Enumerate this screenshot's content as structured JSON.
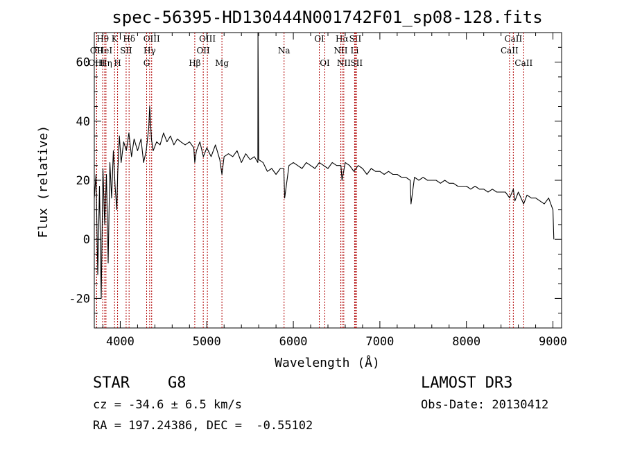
{
  "chart_data": {
    "type": "line",
    "title": "spec-56395-HD130444N001742F01_sp08-128.fits",
    "xlabel": "Wavelength (Å)",
    "ylabel": "Flux (relative)",
    "xlim": [
      3700,
      9100
    ],
    "ylim": [
      -30,
      70
    ],
    "xticks": [
      4000,
      5000,
      6000,
      7000,
      8000,
      9000
    ],
    "yticks": [
      -20,
      0,
      20,
      40,
      60
    ],
    "grid": false,
    "series": [
      {
        "name": "spectrum",
        "x": [
          3700,
          3720,
          3740,
          3760,
          3780,
          3800,
          3820,
          3840,
          3860,
          3880,
          3900,
          3920,
          3940,
          3960,
          3970,
          3990,
          4010,
          4040,
          4070,
          4100,
          4130,
          4160,
          4200,
          4240,
          4270,
          4300,
          4330,
          4340,
          4360,
          4380,
          4420,
          4460,
          4500,
          4540,
          4580,
          4620,
          4660,
          4700,
          4750,
          4800,
          4850,
          4861,
          4880,
          4920,
          4960,
          5000,
          5050,
          5100,
          5150,
          5175,
          5200,
          5250,
          5300,
          5350,
          5400,
          5450,
          5500,
          5550,
          5590,
          5592,
          5600,
          5650,
          5700,
          5750,
          5800,
          5850,
          5890,
          5900,
          5950,
          6000,
          6050,
          6100,
          6150,
          6200,
          6250,
          6300,
          6350,
          6400,
          6450,
          6500,
          6550,
          6563,
          6600,
          6650,
          6700,
          6750,
          6800,
          6850,
          6900,
          6950,
          7000,
          7050,
          7100,
          7150,
          7200,
          7250,
          7300,
          7350,
          7360,
          7400,
          7450,
          7500,
          7550,
          7600,
          7650,
          7700,
          7750,
          7800,
          7850,
          7900,
          7950,
          8000,
          8050,
          8100,
          8150,
          8200,
          8250,
          8300,
          8350,
          8400,
          8450,
          8500,
          8542,
          8560,
          8600,
          8662,
          8700,
          8750,
          8800,
          8850,
          8900,
          8950,
          9000,
          9010
        ],
        "values": [
          14,
          22,
          -12,
          18,
          -20,
          24,
          5,
          22,
          -8,
          26,
          14,
          30,
          18,
          10,
          22,
          35,
          26,
          33,
          30,
          36,
          28,
          34,
          30,
          34,
          26,
          30,
          38,
          45,
          34,
          30,
          33,
          32,
          36,
          33,
          35,
          32,
          34,
          33,
          32,
          33,
          31,
          26,
          30,
          33,
          28,
          31,
          28,
          32,
          27,
          22,
          28,
          29,
          28,
          30,
          26,
          29,
          27,
          28,
          26,
          70,
          27,
          26,
          23,
          24,
          22,
          24,
          24,
          14,
          25,
          26,
          25,
          24,
          26,
          25,
          24,
          26,
          25,
          24,
          26,
          25,
          25,
          20,
          26,
          25,
          23,
          25,
          24,
          22,
          24,
          23,
          23,
          22,
          23,
          22,
          22,
          21,
          21,
          20,
          12,
          21,
          20,
          21,
          20,
          20,
          20,
          19,
          20,
          19,
          19,
          18,
          18,
          18,
          17,
          18,
          17,
          17,
          16,
          17,
          16,
          16,
          16,
          14,
          17,
          13,
          16,
          12,
          15,
          14,
          14,
          13,
          12,
          14,
          10,
          0
        ]
      }
    ],
    "line_markers": [
      {
        "name": "Hθ",
        "x": 3797,
        "row": 1
      },
      {
        "name": "OII",
        "x": 3727,
        "row": 2
      },
      {
        "name": "OIII",
        "x": 3727,
        "row": 3
      },
      {
        "name": "HeI",
        "x": 3820,
        "row": 2
      },
      {
        "name": "Hη",
        "x": 3835,
        "row": 3
      },
      {
        "name": "K",
        "x": 3934,
        "row": 1
      },
      {
        "name": "SII",
        "x": 4068,
        "row": 2
      },
      {
        "name": "H",
        "x": 3969,
        "row": 3
      },
      {
        "name": "Hδ",
        "x": 4102,
        "row": 1
      },
      {
        "name": "OIII",
        "x": 4363,
        "row": 1
      },
      {
        "name": "Hγ",
        "x": 4340,
        "row": 2
      },
      {
        "name": "G",
        "x": 4305,
        "row": 3
      },
      {
        "name": "OIII",
        "x": 5007,
        "row": 1
      },
      {
        "name": "OII",
        "x": 4959,
        "row": 2
      },
      {
        "name": "Hβ",
        "x": 4861,
        "row": 3
      },
      {
        "name": "Mg",
        "x": 5175,
        "row": 3
      },
      {
        "name": "Na",
        "x": 5893,
        "row": 2
      },
      {
        "name": "OI",
        "x": 6300,
        "row": 1
      },
      {
        "name": "OI",
        "x": 6364,
        "row": 3
      },
      {
        "name": "Hα",
        "x": 6563,
        "row": 1
      },
      {
        "name": "SII",
        "x": 6716,
        "row": 1
      },
      {
        "name": "NII",
        "x": 6548,
        "row": 2
      },
      {
        "name": "Li",
        "x": 6708,
        "row": 2
      },
      {
        "name": "NII",
        "x": 6583,
        "row": 3
      },
      {
        "name": "SII",
        "x": 6731,
        "row": 3
      },
      {
        "name": "CaII",
        "x": 8542,
        "row": 1
      },
      {
        "name": "CaII",
        "x": 8498,
        "row": 2
      },
      {
        "name": "CaII",
        "x": 8662,
        "row": 3
      }
    ]
  },
  "info": {
    "object_class": "STAR",
    "subclass": "G8",
    "survey": "LAMOST DR3",
    "redshift": "cz = -34.6 ± 6.5 km/s",
    "obs_date": "Obs-Date: 20130412",
    "coords": "RA = 197.24386, DEC =  -0.55102"
  }
}
